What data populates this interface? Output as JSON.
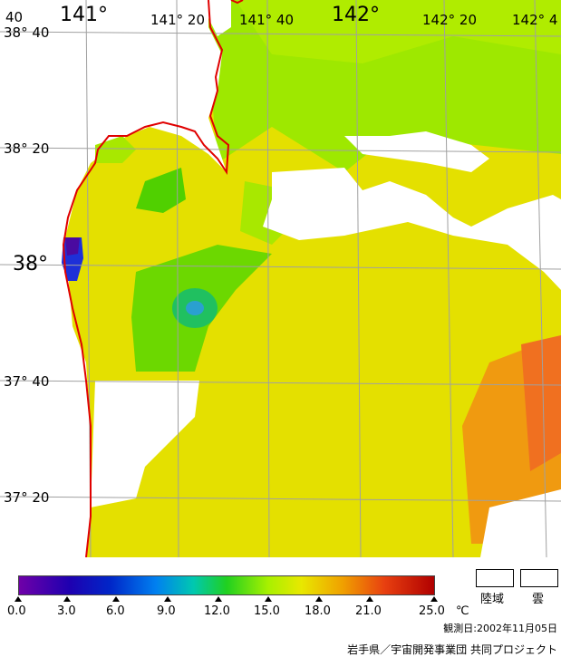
{
  "map": {
    "lon_labels": [
      {
        "text": "141°"
      },
      {
        "text": "141° 20"
      },
      {
        "text": "141° 40"
      },
      {
        "text": "142°"
      },
      {
        "text": "142° 20"
      },
      {
        "text": "142° 4"
      }
    ],
    "lat_labels": [
      {
        "text": "38° 40"
      },
      {
        "text": "38° 20"
      },
      {
        "text": "38°"
      },
      {
        "text": "37° 40"
      },
      {
        "text": "37° 20"
      }
    ],
    "corner_label": "40"
  },
  "legend": {
    "colors": {
      "purple": "#6f00a8",
      "blue": "#0026c8",
      "cyan": "#0080f0",
      "green": "#20d020",
      "yellowgreen": "#a8f000",
      "yellow": "#e8e800",
      "orange": "#f0a000",
      "red": "#b00000"
    },
    "ticks": [
      "0.0",
      "3.0",
      "6.0",
      "9.0",
      "12.0",
      "15.0",
      "18.0",
      "21.0",
      "25.0"
    ],
    "unit": "℃",
    "land_label": "陸域",
    "cloud_label": "雲",
    "observation_date": "観測日:2002年11月05日",
    "credit": "岩手県／宇宙開発事業団 共同プロジェクト"
  }
}
